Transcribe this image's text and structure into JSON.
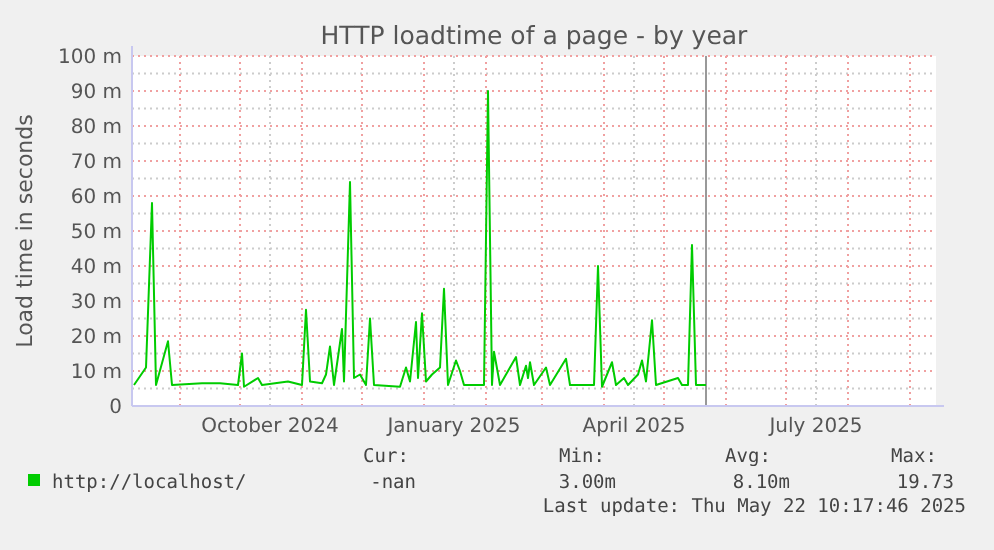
{
  "chart_data": {
    "type": "line",
    "title": "HTTP loadtime of a page - by year",
    "ylabel": "Load time in seconds",
    "xlim": [
      "2024-08-08",
      "2025-09-14"
    ],
    "xticks": [
      {
        "value": "2024-09-01",
        "label": null
      },
      {
        "value": "2024-10-01",
        "label": null
      },
      {
        "value": "2024-10-16",
        "label": "October 2024"
      },
      {
        "value": "2024-11-01",
        "label": null
      },
      {
        "value": "2024-12-01",
        "label": null
      },
      {
        "value": "2025-01-01",
        "label": null
      },
      {
        "value": "2025-01-16",
        "label": "January 2025"
      },
      {
        "value": "2025-02-01",
        "label": null
      },
      {
        "value": "2025-03-01",
        "label": null
      },
      {
        "value": "2025-04-01",
        "label": null
      },
      {
        "value": "2025-04-16",
        "label": "April 2025"
      },
      {
        "value": "2025-05-01",
        "label": null
      },
      {
        "value": "2025-06-01",
        "label": null
      },
      {
        "value": "2025-07-01",
        "label": null
      },
      {
        "value": "2025-07-16",
        "label": "July 2025"
      },
      {
        "value": "2025-08-01",
        "label": null
      },
      {
        "value": "2025-09-01",
        "label": null
      }
    ],
    "ylim": [
      0,
      100
    ],
    "yticks": [
      0,
      {
        "value": 10,
        "label": "10 m"
      },
      {
        "value": 20,
        "label": "20 m"
      },
      {
        "value": 30,
        "label": "30 m"
      },
      {
        "value": 40,
        "label": "40 m"
      },
      {
        "value": 50,
        "label": "50 m"
      },
      {
        "value": 60,
        "label": "60 m"
      },
      {
        "value": 70,
        "label": "70 m"
      },
      {
        "value": 80,
        "label": "80 m"
      },
      {
        "value": 90,
        "label": "90 m"
      },
      {
        "value": 100,
        "label": "100 m"
      }
    ],
    "grid": true,
    "legend": "bottom",
    "marker": "none",
    "line_style": "solid",
    "ref_lines": [
      {
        "axis": "x",
        "value": "2025-05-22",
        "color": "#999999"
      }
    ],
    "series": [
      {
        "name": "http://localhost/",
        "color": "#00cc00",
        "x": [
          "2024-08-09",
          "2024-08-15",
          "2024-08-18",
          "2024-08-20",
          "2024-08-26",
          "2024-08-28",
          "2024-09-12",
          "2024-09-21",
          "2024-09-30",
          "2024-10-02",
          "2024-10-03",
          "2024-10-10",
          "2024-10-12",
          "2024-10-25",
          "2024-11-01",
          "2024-11-03",
          "2024-11-05",
          "2024-11-11",
          "2024-11-13",
          "2024-11-15",
          "2024-11-17",
          "2024-11-21",
          "2024-11-22",
          "2024-11-25",
          "2024-11-27",
          "2024-11-30",
          "2024-12-03",
          "2024-12-05",
          "2024-12-07",
          "2024-12-20",
          "2024-12-23",
          "2024-12-25",
          "2024-12-28",
          "2024-12-29",
          "2024-12-31",
          "2025-01-02",
          "2025-01-05",
          "2025-01-09",
          "2025-01-11",
          "2025-01-13",
          "2025-01-17",
          "2025-01-19",
          "2025-01-21",
          "2025-01-31",
          "2025-02-02",
          "2025-02-04",
          "2025-02-05",
          "2025-02-08",
          "2025-02-16",
          "2025-02-18",
          "2025-02-21",
          "2025-02-22",
          "2025-02-23",
          "2025-02-25",
          "2025-03-03",
          "2025-03-05",
          "2025-03-13",
          "2025-03-15",
          "2025-03-27",
          "2025-03-29",
          "2025-03-31",
          "2025-04-05",
          "2025-04-07",
          "2025-04-11",
          "2025-04-13",
          "2025-04-18",
          "2025-04-20",
          "2025-04-22",
          "2025-04-25",
          "2025-04-27",
          "2025-05-08",
          "2025-05-10",
          "2025-05-13",
          "2025-05-15",
          "2025-05-17",
          "2025-05-22"
        ],
        "values": [
          6,
          11,
          58,
          6,
          18.5,
          6,
          6.5,
          6.5,
          6,
          15,
          5.5,
          8,
          6,
          7,
          6,
          27.5,
          7,
          6.5,
          9,
          17,
          6,
          22,
          7,
          64,
          8,
          9,
          6,
          25,
          6,
          5.5,
          11,
          7,
          24,
          8,
          26.5,
          7,
          9,
          11,
          33.5,
          6,
          13,
          10,
          6,
          6,
          90,
          6,
          15.5,
          6,
          14,
          6,
          11.5,
          8,
          12.5,
          6,
          11,
          6,
          13.5,
          6,
          6,
          40,
          5.5,
          12.5,
          6,
          8,
          6,
          9,
          13,
          7,
          24.5,
          6,
          8,
          6,
          6,
          46,
          6,
          6
        ]
      }
    ],
    "annotations": [
      "Cur:",
      "Min:",
      "Avg:",
      "Max:",
      "-nan",
      "3.00m",
      "8.10m",
      "19.73",
      "Last update: Thu May 22 10:17:46 2025"
    ]
  }
}
